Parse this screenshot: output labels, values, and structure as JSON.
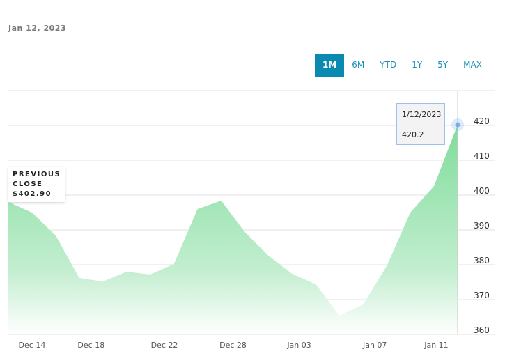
{
  "header": {
    "date": "Jan 12, 2023"
  },
  "ranges": [
    {
      "label": "1M",
      "active": true
    },
    {
      "label": "6M"
    },
    {
      "label": "YTD"
    },
    {
      "label": "1Y"
    },
    {
      "label": "5Y"
    },
    {
      "label": "MAX"
    }
  ],
  "previous_close": {
    "line1": "PREVIOUS",
    "line2": "CLOSE",
    "value": "$402.90",
    "number": 402.9
  },
  "tooltip": {
    "date": "1/12/2023",
    "value": "420.2"
  },
  "colors": {
    "fill": "#7fdc9a",
    "accent": "#0a8ab0",
    "marker": "#7aaee8"
  },
  "chart_data": {
    "type": "area",
    "x": [
      0,
      1,
      2,
      3,
      4,
      5,
      6,
      7,
      8,
      9,
      10,
      11,
      12,
      13,
      14,
      15,
      16,
      17,
      18,
      19
    ],
    "values": [
      398,
      395,
      388.4,
      376.2,
      375.2,
      378,
      377.2,
      380.2,
      396,
      398.4,
      389.4,
      382.6,
      377.4,
      374.4,
      365.4,
      368.6,
      379.6,
      395,
      402.6,
      420.2
    ],
    "ylim": [
      360,
      430
    ],
    "yticks": [
      360,
      370,
      380,
      390,
      400,
      410,
      420
    ],
    "xticks": [
      {
        "pos": 1,
        "label": "Dec 14"
      },
      {
        "pos": 3.5,
        "label": "Dec 18"
      },
      {
        "pos": 6.6,
        "label": "Dec 22"
      },
      {
        "pos": 9.5,
        "label": "Dec 28"
      },
      {
        "pos": 12.3,
        "label": "Jan 03"
      },
      {
        "pos": 15.5,
        "label": "Jan 07"
      },
      {
        "pos": 18.1,
        "label": "Jan 11"
      }
    ],
    "grid": true
  }
}
